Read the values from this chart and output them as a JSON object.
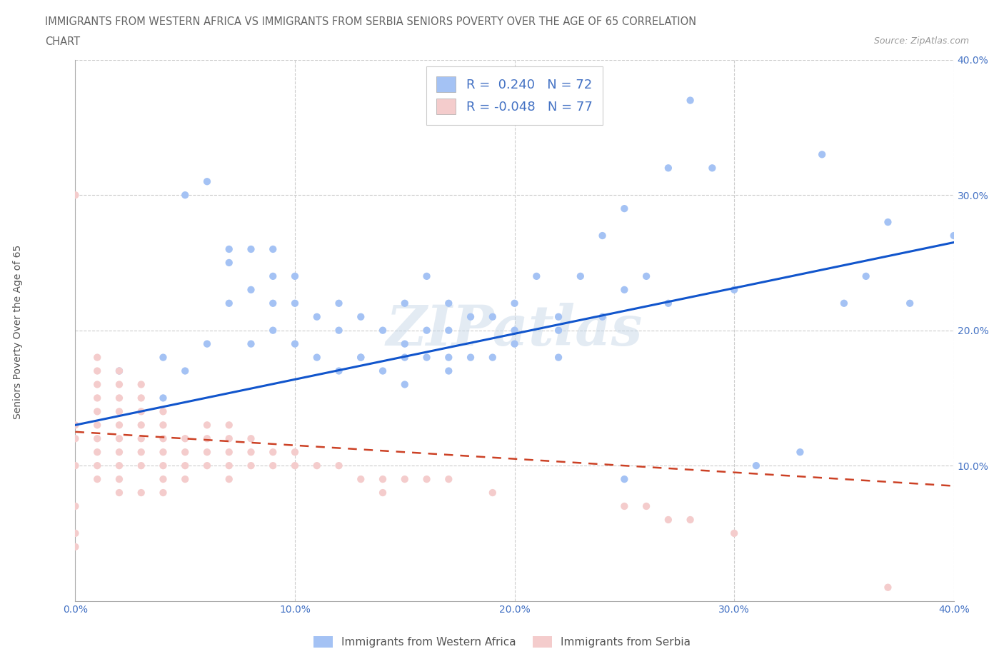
{
  "title_line1": "IMMIGRANTS FROM WESTERN AFRICA VS IMMIGRANTS FROM SERBIA SENIORS POVERTY OVER THE AGE OF 65 CORRELATION",
  "title_line2": "CHART",
  "source_text": "Source: ZipAtlas.com",
  "ylabel": "Seniors Poverty Over the Age of 65",
  "xlim": [
    0.0,
    0.4
  ],
  "ylim": [
    0.0,
    0.4
  ],
  "watermark": "ZIPatlas",
  "blue_color": "#a4c2f4",
  "pink_color": "#f4cccc",
  "blue_line_color": "#1155cc",
  "pink_line_color": "#cc4125",
  "legend_label1": "Immigrants from Western Africa",
  "legend_label2": "Immigrants from Serbia",
  "blue_scatter_x": [
    0.02,
    0.05,
    0.06,
    0.07,
    0.07,
    0.08,
    0.08,
    0.09,
    0.09,
    0.09,
    0.1,
    0.1,
    0.1,
    0.11,
    0.11,
    0.12,
    0.12,
    0.12,
    0.13,
    0.13,
    0.14,
    0.14,
    0.15,
    0.15,
    0.15,
    0.16,
    0.16,
    0.17,
    0.17,
    0.17,
    0.18,
    0.18,
    0.19,
    0.19,
    0.2,
    0.2,
    0.21,
    0.22,
    0.22,
    0.23,
    0.24,
    0.25,
    0.25,
    0.25,
    0.26,
    0.27,
    0.28,
    0.29,
    0.3,
    0.31,
    0.33,
    0.34,
    0.35,
    0.36,
    0.37,
    0.38,
    0.4,
    0.04,
    0.04,
    0.05,
    0.06,
    0.07,
    0.08,
    0.09,
    0.13,
    0.15,
    0.16,
    0.17,
    0.2,
    0.22,
    0.24,
    0.27
  ],
  "blue_scatter_y": [
    0.17,
    0.3,
    0.31,
    0.25,
    0.26,
    0.23,
    0.26,
    0.22,
    0.24,
    0.26,
    0.19,
    0.22,
    0.24,
    0.18,
    0.21,
    0.17,
    0.2,
    0.22,
    0.18,
    0.21,
    0.17,
    0.2,
    0.16,
    0.19,
    0.22,
    0.18,
    0.24,
    0.17,
    0.2,
    0.22,
    0.18,
    0.21,
    0.18,
    0.21,
    0.19,
    0.22,
    0.24,
    0.18,
    0.21,
    0.24,
    0.27,
    0.09,
    0.23,
    0.29,
    0.24,
    0.32,
    0.37,
    0.32,
    0.23,
    0.1,
    0.11,
    0.33,
    0.22,
    0.24,
    0.28,
    0.22,
    0.27,
    0.15,
    0.18,
    0.17,
    0.19,
    0.22,
    0.19,
    0.2,
    0.18,
    0.18,
    0.2,
    0.18,
    0.2,
    0.2,
    0.21,
    0.22
  ],
  "pink_scatter_x": [
    0.0,
    0.0,
    0.0,
    0.0,
    0.0,
    0.0,
    0.0,
    0.01,
    0.01,
    0.01,
    0.01,
    0.01,
    0.01,
    0.01,
    0.01,
    0.01,
    0.01,
    0.02,
    0.02,
    0.02,
    0.02,
    0.02,
    0.02,
    0.02,
    0.02,
    0.02,
    0.02,
    0.03,
    0.03,
    0.03,
    0.03,
    0.03,
    0.03,
    0.03,
    0.03,
    0.04,
    0.04,
    0.04,
    0.04,
    0.04,
    0.04,
    0.04,
    0.05,
    0.05,
    0.05,
    0.05,
    0.06,
    0.06,
    0.06,
    0.06,
    0.07,
    0.07,
    0.07,
    0.07,
    0.07,
    0.08,
    0.08,
    0.08,
    0.09,
    0.09,
    0.1,
    0.1,
    0.11,
    0.12,
    0.13,
    0.14,
    0.14,
    0.15,
    0.16,
    0.17,
    0.19,
    0.25,
    0.26,
    0.27,
    0.28,
    0.3,
    0.37
  ],
  "pink_scatter_y": [
    0.04,
    0.05,
    0.07,
    0.1,
    0.12,
    0.13,
    0.3,
    0.1,
    0.11,
    0.12,
    0.13,
    0.14,
    0.15,
    0.16,
    0.17,
    0.18,
    0.09,
    0.1,
    0.11,
    0.12,
    0.13,
    0.14,
    0.15,
    0.16,
    0.17,
    0.09,
    0.08,
    0.1,
    0.11,
    0.12,
    0.13,
    0.14,
    0.15,
    0.16,
    0.08,
    0.1,
    0.11,
    0.12,
    0.13,
    0.14,
    0.09,
    0.08,
    0.1,
    0.11,
    0.12,
    0.09,
    0.1,
    0.11,
    0.12,
    0.13,
    0.1,
    0.11,
    0.12,
    0.13,
    0.09,
    0.1,
    0.11,
    0.12,
    0.1,
    0.11,
    0.1,
    0.11,
    0.1,
    0.1,
    0.09,
    0.09,
    0.08,
    0.09,
    0.09,
    0.09,
    0.08,
    0.07,
    0.07,
    0.06,
    0.06,
    0.05,
    0.01
  ],
  "blue_trend_x": [
    0.0,
    0.4
  ],
  "blue_trend_y": [
    0.13,
    0.265
  ],
  "pink_trend_x": [
    0.0,
    0.4
  ],
  "pink_trend_y": [
    0.125,
    0.085
  ]
}
